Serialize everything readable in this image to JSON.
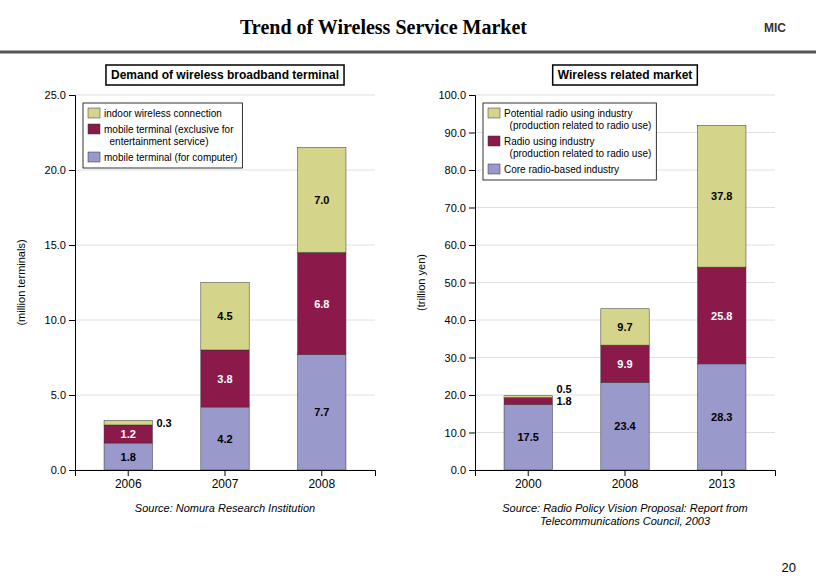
{
  "title": "Trend of Wireless Service Market",
  "annotations": [
    "MIC",
    "20"
  ],
  "chart_data": [
    {
      "type": "bar",
      "stacked": true,
      "data_labels": true,
      "grid": true,
      "legend": "upper left",
      "title": "Demand of wireless broadband terminal",
      "y_label": "(million terminals)",
      "categories": [
        "2006",
        "2007",
        "2008"
      ],
      "ylim": [
        0,
        25.0
      ],
      "yticks": [
        {
          "value": 0,
          "label": "0.0"
        },
        {
          "value": 5,
          "label": "5.0"
        },
        {
          "value": 10,
          "label": "10.0"
        },
        {
          "value": 15,
          "label": "15.0"
        },
        {
          "value": 20,
          "label": "20.0"
        },
        {
          "value": 25,
          "label": "25.0"
        }
      ],
      "series": [
        {
          "name": "mobile terminal (for computer)",
          "color": "#9999cc",
          "values": [
            1.8,
            4.2,
            7.7
          ],
          "value_labels": [
            "1.8",
            "4.2",
            "7.7"
          ]
        },
        {
          "name": "mobile terminal (exclusive for\n  entertainment service)",
          "color": "#8b1a4a",
          "values": [
            1.2,
            3.8,
            6.8
          ],
          "value_labels": [
            "1.2",
            "3.8",
            "6.8"
          ]
        },
        {
          "name": "indoor wireless connection",
          "color": "#d4d48a",
          "values": [
            0.3,
            4.5,
            7.0
          ],
          "value_labels": [
            "0.3",
            "4.5",
            "7.0"
          ]
        }
      ],
      "annotations": [
        "Source: Nomura Research Institution"
      ]
    },
    {
      "type": "bar",
      "stacked": true,
      "data_labels": true,
      "grid": true,
      "legend": "upper left",
      "title": "Wireless related market",
      "y_label": "(trillion yen)",
      "categories": [
        "2000",
        "2008",
        "2013"
      ],
      "ylim": [
        0,
        100.0
      ],
      "yticks": [
        {
          "value": 0,
          "label": "0.0"
        },
        {
          "value": 10,
          "label": "10.0"
        },
        {
          "value": 20,
          "label": "20.0"
        },
        {
          "value": 30,
          "label": "30.0"
        },
        {
          "value": 40,
          "label": "40.0"
        },
        {
          "value": 50,
          "label": "50.0"
        },
        {
          "value": 60,
          "label": "60.0"
        },
        {
          "value": 70,
          "label": "70.0"
        },
        {
          "value": 80,
          "label": "80.0"
        },
        {
          "value": 90,
          "label": "90.0"
        },
        {
          "value": 100,
          "label": "100.0"
        }
      ],
      "series": [
        {
          "name": "Core radio-based industry",
          "color": "#9999cc",
          "values": [
            17.5,
            23.4,
            28.3
          ],
          "value_labels": [
            "17.5",
            "23.4",
            "28.3"
          ]
        },
        {
          "name": "Radio using industry\n  (production related to radio use)",
          "color": "#8b1a4a",
          "values": [
            1.8,
            9.9,
            25.8
          ],
          "value_labels": [
            "1.8",
            "9.9",
            "25.8"
          ]
        },
        {
          "name": "Potential radio using industry\n  (production related to radio use)",
          "color": "#d4d48a",
          "values": [
            0.5,
            9.7,
            37.8
          ],
          "value_labels": [
            "0.5",
            "9.7",
            "37.8"
          ]
        }
      ],
      "annotations": [
        "Source: Radio Policy Vision Proposal: Report from\nTelecommunications Council, 2003"
      ]
    }
  ]
}
